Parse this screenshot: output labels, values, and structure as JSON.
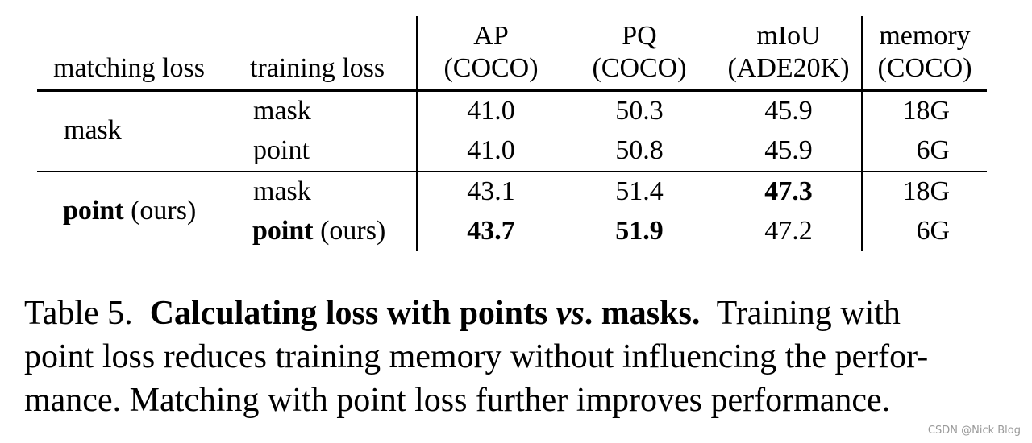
{
  "table": {
    "headers": {
      "matching_loss": "matching loss",
      "training_loss": "training loss",
      "ap": [
        "AP",
        "(COCO)"
      ],
      "pq": [
        "PQ",
        "(COCO)"
      ],
      "miou": [
        "mIoU",
        "(ADE20K)"
      ],
      "memory": [
        "memory",
        "(COCO)"
      ]
    },
    "groups": [
      {
        "matching": "mask",
        "matching_suffix": "",
        "rows": [
          {
            "training": "mask",
            "training_suffix": "",
            "ap": "41.0",
            "pq": "50.3",
            "miou": "45.9",
            "memory": "18G"
          },
          {
            "training": "point",
            "training_suffix": "",
            "ap": "41.0",
            "pq": "50.8",
            "miou": "45.9",
            "memory": "6G"
          }
        ]
      },
      {
        "matching": "point",
        "matching_suffix": " (ours)",
        "rows": [
          {
            "training": "mask",
            "training_suffix": "",
            "ap": "43.1",
            "pq": "51.4",
            "miou": "47.3",
            "memory": "18G"
          },
          {
            "training": "point",
            "training_suffix": " (ours)",
            "ap": "43.7",
            "pq": "51.9",
            "miou": "47.2",
            "memory": "6G"
          }
        ]
      }
    ]
  },
  "caption": {
    "label": "Table 5.",
    "title_a": "Calculating loss with points",
    "title_vs": "vs",
    "title_b": ". masks.",
    "text_line1": "Training with",
    "text_line2": "point loss reduces training memory without influencing the perfor-",
    "text_line3": "mance. Matching with point loss further improves performance."
  },
  "watermark": "CSDN @Nick Blog"
}
